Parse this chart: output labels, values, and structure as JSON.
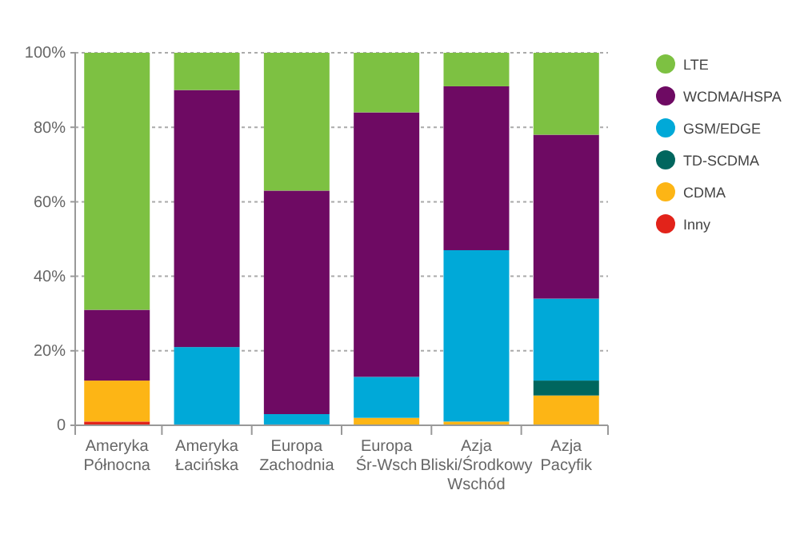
{
  "chart_data": {
    "type": "bar",
    "stacked": true,
    "categories": [
      "Ameryka Północna",
      "Ameryka Łacińska",
      "Europa Zachodnia",
      "Europa Śr-Wsch",
      "Azja Bliski/Środkowy Wschód",
      "Azja Pacyfik"
    ],
    "series": [
      {
        "name": "Inny",
        "color": "#e2231a",
        "values": [
          1,
          0,
          0,
          0,
          0,
          0
        ]
      },
      {
        "name": "CDMA",
        "color": "#fdb515",
        "values": [
          11,
          0,
          0,
          2,
          1,
          8
        ]
      },
      {
        "name": "TD-SCDMA",
        "color": "#00665e",
        "values": [
          0,
          0,
          0,
          0,
          0,
          4
        ]
      },
      {
        "name": "GSM/EDGE",
        "color": "#00a9d8",
        "values": [
          0,
          21,
          3,
          11,
          46,
          22
        ]
      },
      {
        "name": "WCDMA/HSPA",
        "color": "#6e0a63",
        "values": [
          19,
          69,
          60,
          71,
          44,
          44
        ]
      },
      {
        "name": "LTE",
        "color": "#7dc142",
        "values": [
          69,
          10,
          37,
          16,
          9,
          22
        ]
      }
    ],
    "ylim": [
      0,
      100
    ],
    "yticks": [
      0,
      {
        "value": 20,
        "label": "20%"
      },
      {
        "value": 40,
        "label": "40%"
      },
      {
        "value": 60,
        "label": "60%"
      },
      {
        "value": 80,
        "label": "80%"
      },
      {
        "value": 100,
        "label": "100%"
      }
    ],
    "grid": "y",
    "legend": "right"
  }
}
